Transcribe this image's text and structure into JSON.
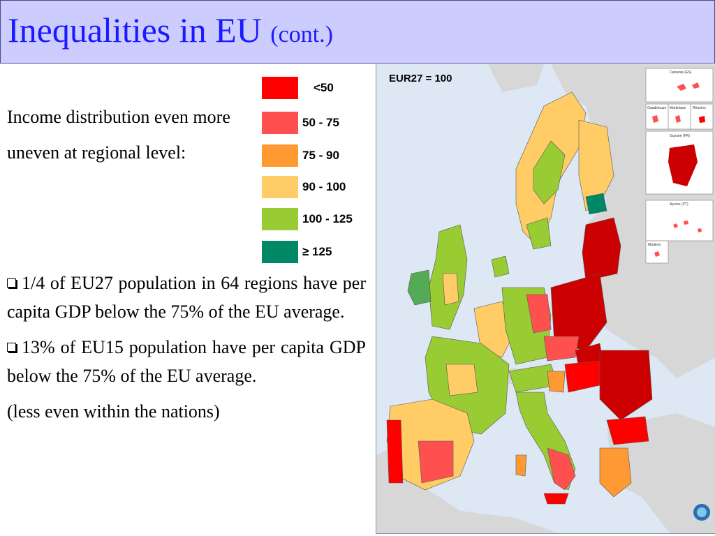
{
  "slide": {
    "title_main": "Inequalities in EU",
    "title_cont": "(cont.)",
    "intro": "Income distribution even more uneven at regional level:",
    "bullets": [
      "1/4 of  EU27 population in 64 regions have per capita GDP below the 75% of the EU average.",
      "13% of EU15 population have per capita GDP below the 75% of the EU average."
    ],
    "note": "(less even within the nations)"
  },
  "legend": [
    {
      "label": "<50",
      "color": "#ff0000"
    },
    {
      "label": "50 - 75",
      "color": "#ff5050"
    },
    {
      "label": "75 - 90",
      "color": "#ff9933"
    },
    {
      "label": "90 - 100",
      "color": "#ffcc66"
    },
    {
      "label": "100 - 125",
      "color": "#99cc33"
    },
    {
      "label": "≥ 125",
      "color": "#008866"
    }
  ],
  "map": {
    "reference_label": "EUR27 = 100",
    "insets": [
      "Canarias (ES)",
      "Guadeloupe",
      "Martinique",
      "Réunion",
      "Guyane (FR)",
      "Açores (PT)",
      "Madeira"
    ],
    "colors": {
      "sea": "#dde8f4",
      "non_eu": "#d7d7d7",
      "border": "#555555"
    }
  }
}
